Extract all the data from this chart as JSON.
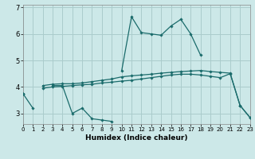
{
  "title": "",
  "xlabel": "Humidex (Indice chaleur)",
  "background_color": "#cce8e8",
  "grid_color": "#aacccc",
  "line_color": "#1a6b6b",
  "x_values": [
    0,
    1,
    2,
    3,
    4,
    5,
    6,
    7,
    8,
    9,
    10,
    11,
    12,
    13,
    14,
    15,
    16,
    17,
    18,
    19,
    20,
    21,
    22,
    23
  ],
  "line1": [
    3.75,
    3.2,
    null,
    4.05,
    4.05,
    3.0,
    3.2,
    2.8,
    2.75,
    2.7,
    null,
    null,
    null,
    null,
    null,
    null,
    null,
    null,
    null,
    null,
    null,
    null,
    null,
    null
  ],
  "line2": [
    null,
    null,
    null,
    null,
    null,
    null,
    null,
    null,
    null,
    null,
    4.6,
    6.65,
    6.05,
    6.0,
    5.95,
    6.3,
    6.55,
    6.0,
    5.2,
    null,
    null,
    null,
    null,
    null
  ],
  "line3": [
    3.75,
    null,
    4.05,
    4.1,
    4.12,
    4.12,
    4.15,
    4.2,
    4.25,
    4.3,
    4.38,
    4.42,
    4.45,
    4.48,
    4.52,
    4.55,
    4.58,
    4.6,
    4.62,
    4.58,
    4.55,
    4.52,
    3.3,
    2.85
  ],
  "line4": [
    3.75,
    null,
    3.95,
    4.0,
    4.02,
    4.05,
    4.08,
    4.1,
    4.15,
    4.18,
    4.22,
    4.25,
    4.3,
    4.35,
    4.4,
    4.45,
    4.48,
    4.48,
    4.45,
    4.4,
    4.35,
    4.5,
    3.3,
    2.85
  ],
  "ylim": [
    2.6,
    7.1
  ],
  "xlim": [
    0,
    23
  ],
  "yticks": [
    3,
    4,
    5,
    6,
    7
  ],
  "xticks": [
    0,
    1,
    2,
    3,
    4,
    5,
    6,
    7,
    8,
    9,
    10,
    11,
    12,
    13,
    14,
    15,
    16,
    17,
    18,
    19,
    20,
    21,
    22,
    23
  ],
  "xlabel_fontsize": 6.5,
  "tick_fontsize": 5.5
}
